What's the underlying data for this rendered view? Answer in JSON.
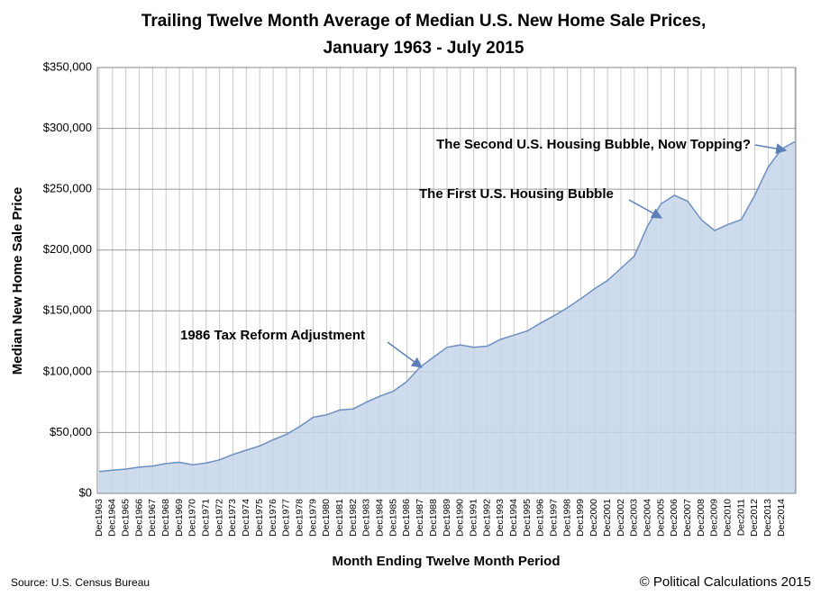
{
  "chart_data": {
    "type": "area",
    "title": [
      "Trailing Twelve Month Average of Median U.S. New Home Sale Prices,",
      "January 1963 - July 2015"
    ],
    "x_label": "Month Ending Twelve Month Period",
    "y_label": "Median New Home Sale Price",
    "source": "Source: U.S. Census Bureau",
    "credit": "© Political Calculations 2015",
    "annotations": [
      "1986 Tax Reform Adjustment",
      "The First U.S. Housing Bubble",
      "The Second U.S. Housing Bubble, Now Topping?"
    ],
    "categories": [
      "Dec1963",
      "Dec1964",
      "Dec1965",
      "Dec1966",
      "Dec1967",
      "Dec1968",
      "Dec1969",
      "Dec1970",
      "Dec1971",
      "Dec1972",
      "Dec1973",
      "Dec1974",
      "Dec1975",
      "Dec1976",
      "Dec1977",
      "Dec1978",
      "Dec1979",
      "Dec1980",
      "Dec1981",
      "Dec1982",
      "Dec1983",
      "Dec1984",
      "Dec1985",
      "Dec1986",
      "Dec1987",
      "Dec1988",
      "Dec1989",
      "Dec1990",
      "Dec1991",
      "Dec1992",
      "Dec1993",
      "Dec1994",
      "Dec1995",
      "Dec1996",
      "Dec1997",
      "Dec1998",
      "Dec1999",
      "Dec2000",
      "Dec2001",
      "Dec2002",
      "Dec2003",
      "Dec2004",
      "Dec2005",
      "Dec2006",
      "Dec2007",
      "Dec2008",
      "Dec2009",
      "Dec2010",
      "Dec2011",
      "Dec2012",
      "Dec2013",
      "Dec2014",
      null
    ],
    "values": [
      18000,
      19000,
      20000,
      21500,
      22500,
      24500,
      25500,
      23500,
      25000,
      27500,
      32000,
      35500,
      39000,
      44000,
      48500,
      55000,
      62500,
      64500,
      68500,
      69500,
      75000,
      80000,
      84000,
      92000,
      104000,
      112000,
      120000,
      122000,
      120000,
      121000,
      126500,
      130000,
      133500,
      140000,
      146000,
      152500,
      160000,
      168000,
      175000,
      185000,
      195000,
      220000,
      238000,
      245000,
      240000,
      225000,
      216000,
      221000,
      225000,
      245000,
      268000,
      283000,
      289000
    ],
    "color": "#c6d5ea",
    "line_color": "#6d8fbf",
    "ylim": [
      0,
      350000
    ],
    "yticks": [
      {
        "value": 0,
        "label": "$0"
      },
      {
        "value": 50000,
        "label": "$50,000"
      },
      {
        "value": 100000,
        "label": "$100,000"
      },
      {
        "value": 150000,
        "label": "$150,000"
      },
      {
        "value": 200000,
        "label": "$200,000"
      },
      {
        "value": 250000,
        "label": "$250,000"
      },
      {
        "value": 300000,
        "label": "$300,000"
      },
      {
        "value": 350000,
        "label": "$350,000"
      }
    ],
    "grid": true
  }
}
